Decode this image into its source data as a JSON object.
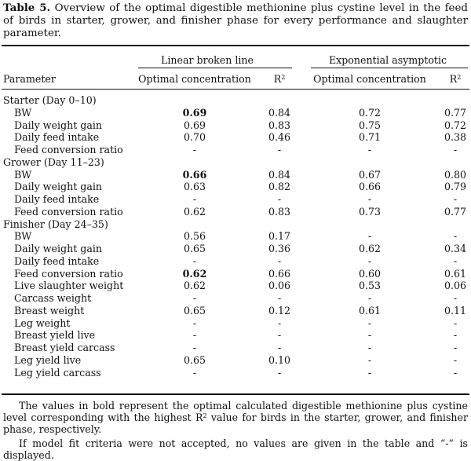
{
  "caption": {
    "label": "Table 5.",
    "text": "Overview of the optimal digestible methionine plus cystine level in the feed of birds in starter, grower, and finisher phase for every performance and slaughter parameter."
  },
  "header": {
    "group1": "Linear broken line",
    "group2": "Exponential asymptotic",
    "parameter": "Parameter",
    "opt1": "Optimal concentration",
    "r2_1": "R",
    "opt2": "Optimal concentration",
    "r2_2": "R",
    "sup": "2"
  },
  "rows": [
    {
      "type": "section",
      "label": "Starter (Day 0–10)"
    },
    {
      "label": "BW",
      "lin_opt": "0.69",
      "lin_r2": "0.84",
      "exp_opt": "0.72",
      "exp_r2": "0.77",
      "bold": true
    },
    {
      "label": "Daily weight gain",
      "lin_opt": "0.69",
      "lin_r2": "0.83",
      "exp_opt": "0.75",
      "exp_r2": "0.72"
    },
    {
      "label": "Daily feed intake",
      "lin_opt": "0.70",
      "lin_r2": "0.46",
      "exp_opt": "0.71",
      "exp_r2": "0.38"
    },
    {
      "label": "Feed conversion ratio",
      "lin_opt": "-",
      "lin_r2": "-",
      "exp_opt": "-",
      "exp_r2": "-"
    },
    {
      "type": "section",
      "label": "Grower (Day 11–23)"
    },
    {
      "label": "BW",
      "lin_opt": "0.66",
      "lin_r2": "0.84",
      "exp_opt": "0.67",
      "exp_r2": "0.80",
      "bold": true
    },
    {
      "label": "Daily weight gain",
      "lin_opt": "0.63",
      "lin_r2": "0.82",
      "exp_opt": "0.66",
      "exp_r2": "0.79"
    },
    {
      "label": "Daily feed intake",
      "lin_opt": "-",
      "lin_r2": "-",
      "exp_opt": "-",
      "exp_r2": "-"
    },
    {
      "label": "Feed conversion ratio",
      "lin_opt": "0.62",
      "lin_r2": "0.83",
      "exp_opt": "0.73",
      "exp_r2": "0.77"
    },
    {
      "type": "section",
      "label": "Finisher (Day 24–35)"
    },
    {
      "label": "BW",
      "lin_opt": "0.56",
      "lin_r2": "0.17",
      "exp_opt": "-",
      "exp_r2": "-"
    },
    {
      "label": "Daily weight gain",
      "lin_opt": "0.65",
      "lin_r2": "0.36",
      "exp_opt": "0.62",
      "exp_r2": "0.34"
    },
    {
      "label": "Daily feed intake",
      "lin_opt": "-",
      "lin_r2": "-",
      "exp_opt": "-",
      "exp_r2": "-"
    },
    {
      "label": "Feed conversion ratio",
      "lin_opt": "0.62",
      "lin_r2": "0.66",
      "exp_opt": "0.60",
      "exp_r2": "0.61",
      "bold": true
    },
    {
      "label": "Live slaughter weight",
      "lin_opt": "0.62",
      "lin_r2": "0.06",
      "exp_opt": "0.53",
      "exp_r2": "0.06"
    },
    {
      "label": "Carcass weight",
      "lin_opt": "-",
      "lin_r2": "-",
      "exp_opt": "-",
      "exp_r2": "-"
    },
    {
      "label": "Breast weight",
      "lin_opt": "0.65",
      "lin_r2": "0.12",
      "exp_opt": "0.61",
      "exp_r2": "0.11"
    },
    {
      "label": "Leg weight",
      "lin_opt": "-",
      "lin_r2": "-",
      "exp_opt": "-",
      "exp_r2": "-"
    },
    {
      "label": "Breast yield live",
      "lin_opt": "-",
      "lin_r2": "-",
      "exp_opt": "-",
      "exp_r2": "-"
    },
    {
      "label": "Breast yield carcass",
      "lin_opt": "-",
      "lin_r2": "-",
      "exp_opt": "-",
      "exp_r2": "-"
    },
    {
      "label": "Leg yield live",
      "lin_opt": "0.65",
      "lin_r2": "0.10",
      "exp_opt": "-",
      "exp_r2": "-"
    },
    {
      "label": "Leg yield carcass",
      "lin_opt": "-",
      "lin_r2": "-",
      "exp_opt": "-",
      "exp_r2": "-"
    }
  ],
  "footnotes": {
    "note1_a": "The values in bold represent the optimal calculated digestible methionine plus cystine level corresponding with the highest R",
    "note1_sup": "2",
    "note1_b": " value for birds in the starter, grower, and finisher phase, respectively.",
    "note2": "If model fit criteria were not accepted, no values are given in the table and “-” is displayed."
  }
}
